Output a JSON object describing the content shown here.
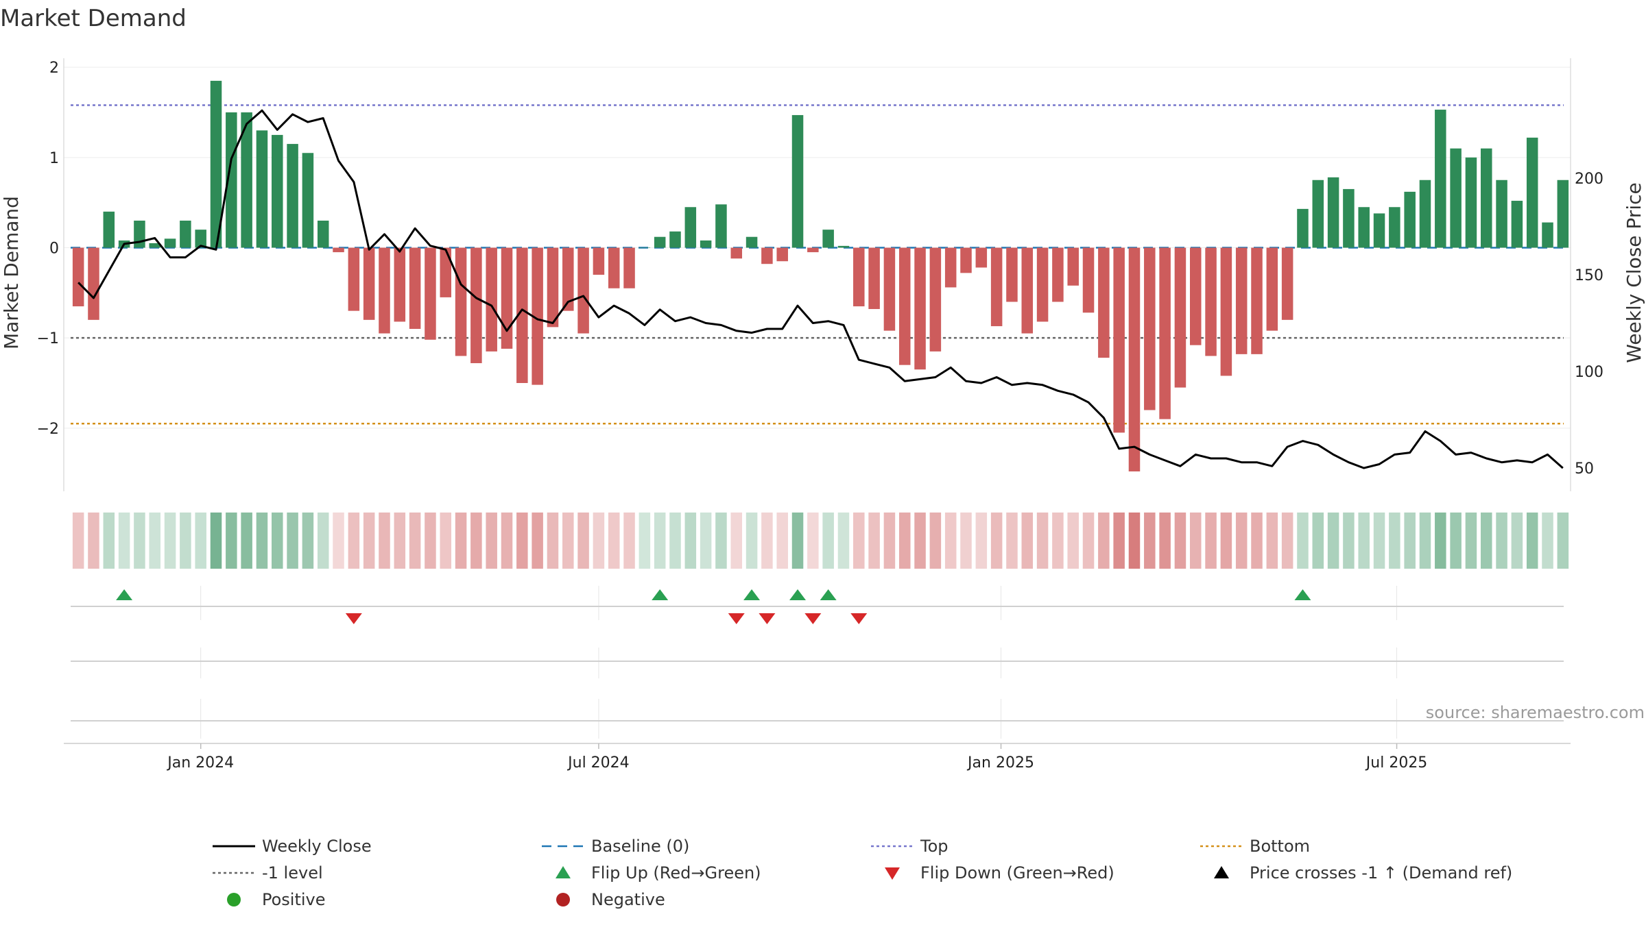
{
  "chart_data": {
    "type": "bar",
    "title": "Market Demand",
    "ylabel": "Market Demand",
    "y2label": "Weekly Close Price",
    "ylim": [
      -2.7,
      2.1
    ],
    "y2lim": [
      38,
      262
    ],
    "yticks": [
      2,
      1,
      0,
      -1,
      -2
    ],
    "yticklabels": [
      "2",
      "1",
      "0",
      "−1",
      "−2"
    ],
    "y2ticks": [
      200,
      150,
      100,
      50
    ],
    "x_start": "2023-11-06",
    "x_interval": "weekly",
    "xticks": [
      {
        "date": "2024-01-01",
        "label": "Jan 2024"
      },
      {
        "date": "2024-07-01",
        "label": "Jul 2024"
      },
      {
        "date": "2025-01-01",
        "label": "Jan 2025"
      },
      {
        "date": "2025-07-01",
        "label": "Jul 2025"
      }
    ],
    "series": [
      {
        "name": "Market Demand",
        "values": [
          -0.65,
          -0.8,
          0.4,
          0.08,
          0.3,
          0.05,
          0.1,
          0.3,
          0.2,
          1.85,
          1.5,
          1.5,
          1.3,
          1.25,
          1.15,
          1.05,
          0.3,
          -0.05,
          -0.7,
          -0.8,
          -0.95,
          -0.82,
          -0.9,
          -1.02,
          -0.55,
          -1.2,
          -1.28,
          -1.15,
          -1.12,
          -1.5,
          -1.52,
          -0.88,
          -0.7,
          -0.95,
          -0.3,
          -0.45,
          -0.45,
          0.0,
          0.12,
          0.18,
          0.45,
          0.08,
          0.48,
          -0.12,
          0.12,
          -0.18,
          -0.15,
          1.47,
          -0.05,
          0.2,
          0.02,
          -0.65,
          -0.68,
          -0.92,
          -1.3,
          -1.35,
          -1.15,
          -0.44,
          -0.28,
          -0.22,
          -0.87,
          -0.6,
          -0.95,
          -0.82,
          -0.6,
          -0.42,
          -0.72,
          -1.22,
          -2.05,
          -2.48,
          -1.8,
          -1.9,
          -1.55,
          -1.08,
          -1.2,
          -1.42,
          -1.18,
          -1.18,
          -0.92,
          -0.8,
          0.43,
          0.75,
          0.78,
          0.65,
          0.45,
          0.38,
          0.45,
          0.62,
          0.75,
          1.53,
          1.1,
          1.0,
          1.1,
          0.75,
          0.52,
          1.22,
          0.28,
          0.75
        ]
      },
      {
        "name": "Weekly Close",
        "axis": "right",
        "values": [
          146,
          138,
          152,
          166,
          167,
          169,
          159,
          159,
          165,
          163,
          210,
          228,
          235,
          225,
          233,
          229,
          231,
          209,
          198,
          163,
          171,
          162,
          174,
          165,
          163,
          145,
          138,
          134,
          121,
          132,
          127,
          125,
          136,
          139,
          128,
          134,
          130,
          124,
          132,
          126,
          128,
          125,
          124,
          121,
          120,
          122,
          122,
          134,
          125,
          126,
          124,
          106,
          104,
          102,
          95,
          96,
          97,
          102,
          95,
          94,
          97,
          93,
          94,
          93,
          90,
          88,
          84,
          76,
          60,
          61,
          57,
          54,
          51,
          57,
          55,
          55,
          53,
          53,
          51,
          61,
          64,
          62,
          57,
          53,
          50,
          52,
          57,
          58,
          69,
          64,
          57,
          58,
          55,
          53,
          54,
          53,
          57,
          50
        ]
      }
    ],
    "reference_lines": [
      {
        "name": "Baseline (0)",
        "y": 0,
        "color": "#1f77b4",
        "style": "dashed"
      },
      {
        "name": "Top",
        "y": 1.58,
        "color": "#7777cc",
        "style": "dotted"
      },
      {
        "name": "-1 level",
        "y": -1,
        "color": "#666666",
        "style": "dotted"
      },
      {
        "name": "Bottom",
        "y": -1.95,
        "color": "#d4901a",
        "style": "dotted"
      }
    ],
    "flip_up_indices": [
      3,
      38,
      44,
      47,
      49,
      80
    ],
    "flip_down_indices": [
      18,
      43,
      45,
      48,
      51
    ],
    "colors": {
      "positive": "#2e8b57",
      "negative": "#cd5c5c",
      "price": "#000000",
      "flip_up": "#2aa052",
      "flip_down": "#d62728"
    },
    "legend": [
      {
        "label": "Weekly Close",
        "symbol": "line",
        "color": "#000000"
      },
      {
        "label": "Baseline (0)",
        "symbol": "dash",
        "color": "#1f77b4"
      },
      {
        "label": "Top",
        "symbol": "dot",
        "color": "#7777cc"
      },
      {
        "label": "Bottom",
        "symbol": "dot",
        "color": "#d4901a"
      },
      {
        "label": "-1 level",
        "symbol": "dot",
        "color": "#666666"
      },
      {
        "label": "Flip Up (Red→Green)",
        "symbol": "tri-up",
        "color": "#2aa052"
      },
      {
        "label": "Flip Down (Green→Red)",
        "symbol": "tri-down",
        "color": "#d62728"
      },
      {
        "label": "Price crosses -1 ↑ (Demand ref)",
        "symbol": "tri-up",
        "color": "#000000"
      },
      {
        "label": "Positive",
        "symbol": "circle",
        "color": "#2aa02a"
      },
      {
        "label": "Negative",
        "symbol": "circle",
        "color": "#b22222"
      }
    ],
    "legend_position": "bottom",
    "source": "source: sharemaestro.com"
  }
}
